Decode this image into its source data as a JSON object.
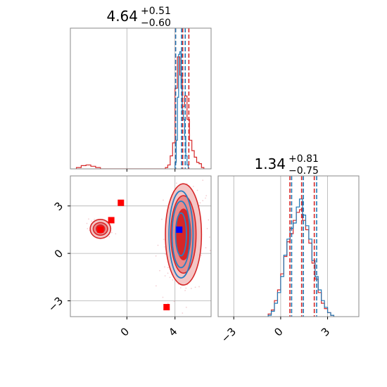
{
  "chart_data": [
    {
      "type": "histogram",
      "panel": "top-left marginal",
      "title": {
        "value": "4.64",
        "plus": "+0.51",
        "minus": "−0.60"
      },
      "xlim": [
        -4.7,
        7.0
      ],
      "ylim": [
        0,
        1.0
      ],
      "grid": true,
      "series": [
        {
          "color": "#d62728",
          "bin_edges": [
            -4.2,
            -3.8,
            -3.4,
            -3.0,
            -2.6,
            -2.2,
            3.2,
            3.4,
            3.6,
            3.8,
            4.0,
            4.2,
            4.4,
            4.6,
            4.8,
            5.0,
            5.2,
            5.4,
            5.6,
            5.8,
            6.0,
            6.2,
            6.4
          ],
          "counts": [
            0.01,
            0.025,
            0.03,
            0.02,
            0.01,
            0,
            0.01,
            0.03,
            0.1,
            0.2,
            0.62,
            0.86,
            0.72,
            0.48,
            0.56,
            0.38,
            0.22,
            0.14,
            0.09,
            0.05,
            0.04,
            0.01
          ],
          "quantiles": [
            4.04,
            4.64,
            5.15
          ]
        },
        {
          "color": "#1f77b4",
          "bin_edges": [
            4.0,
            4.1,
            4.2,
            4.3,
            4.4,
            4.5,
            4.6,
            4.7,
            4.8,
            4.9,
            5.0,
            5.1
          ],
          "counts": [
            0.05,
            0.22,
            0.55,
            0.88,
            0.9,
            0.62,
            0.45,
            0.38,
            0.25,
            0.1,
            0.03
          ],
          "quantiles": [
            4.05,
            4.55,
            4.85
          ]
        }
      ]
    },
    {
      "type": "histogram",
      "panel": "bottom-right marginal",
      "title": {
        "value": "1.34",
        "plus": "+0.81",
        "minus": "−0.75"
      },
      "xlim": [
        -4.0,
        5.0
      ],
      "ylim": [
        0,
        1.0
      ],
      "xticks": [
        -3,
        0,
        3
      ],
      "xtick_labels": [
        "−3",
        "0",
        "3"
      ],
      "grid": true,
      "series": [
        {
          "color": "#d62728",
          "bin_edges": [
            -0.8,
            -0.6,
            -0.4,
            -0.2,
            0.0,
            0.2,
            0.4,
            0.6,
            0.8,
            1.0,
            1.2,
            1.4,
            1.6,
            1.8,
            2.0,
            2.2,
            2.4,
            2.6,
            2.8,
            3.0,
            3.2,
            3.4
          ],
          "counts": [
            0.02,
            0.05,
            0.12,
            0.2,
            0.32,
            0.45,
            0.56,
            0.62,
            0.72,
            0.78,
            0.8,
            0.72,
            0.65,
            0.55,
            0.4,
            0.28,
            0.18,
            0.1,
            0.06,
            0.03,
            0.01
          ],
          "quantiles": [
            0.59,
            1.34,
            2.15
          ]
        },
        {
          "color": "#1f77b4",
          "bin_edges": [
            -0.8,
            -0.6,
            -0.4,
            -0.2,
            0.0,
            0.2,
            0.4,
            0.6,
            0.8,
            1.0,
            1.2,
            1.4,
            1.6,
            1.8,
            2.0,
            2.2,
            2.4,
            2.6,
            2.8,
            3.0,
            3.2,
            3.4
          ],
          "counts": [
            0.01,
            0.04,
            0.1,
            0.18,
            0.3,
            0.46,
            0.58,
            0.66,
            0.7,
            0.82,
            0.88,
            0.76,
            0.68,
            0.58,
            0.42,
            0.3,
            0.2,
            0.12,
            0.07,
            0.03,
            0.01
          ],
          "quantiles": [
            0.7,
            1.45,
            2.3
          ]
        }
      ]
    },
    {
      "type": "contour",
      "panel": "bottom-left joint",
      "xlim": [
        -4.7,
        7.0
      ],
      "ylim": [
        -4.0,
        4.9
      ],
      "xticks": [
        0,
        4
      ],
      "xtick_labels": [
        "0",
        "4"
      ],
      "yticks": [
        3,
        0,
        -3
      ],
      "ytick_labels": [
        "3",
        "0",
        "−3"
      ],
      "grid": true,
      "series": [
        {
          "color": "#d62728",
          "fill_colors": [
            "#d62728",
            "#e88a8b",
            "#f4c6c6"
          ],
          "modes": [
            {
              "center": [
                4.7,
                1.2
              ],
              "sigma_levels": [
                [
                  0.6,
                  1.6
                ],
                [
                  1.05,
                  2.45
                ],
                [
                  1.5,
                  3.2
                ]
              ]
            },
            {
              "center": [
                -2.2,
                1.55
              ],
              "sigma_levels": [
                [
                  0.35,
                  0.25
                ],
                [
                  0.6,
                  0.4
                ],
                [
                  0.85,
                  0.6
                ]
              ]
            }
          ]
        },
        {
          "color": "#2b7fc0",
          "modes": [
            {
              "center": [
                4.5,
                1.2
              ],
              "sigma_levels": [
                [
                  0.45,
                  1.35
                ],
                [
                  0.75,
                  2.1
                ],
                [
                  1.0,
                  2.75
                ]
              ]
            }
          ]
        }
      ],
      "markers": [
        {
          "color": "#ff0000",
          "shape": "square",
          "x": -2.2,
          "y": 1.5
        },
        {
          "color": "#ff0000",
          "shape": "square",
          "x": -1.3,
          "y": 2.1
        },
        {
          "color": "#ff0000",
          "shape": "square",
          "x": -0.5,
          "y": 3.2
        },
        {
          "color": "#ff0000",
          "shape": "square",
          "x": 3.3,
          "y": -3.4
        },
        {
          "color": "#0000ff",
          "shape": "square",
          "x": 4.35,
          "y": 1.5
        }
      ]
    }
  ],
  "colors": {
    "red": "#d62728",
    "blue": "#1f77b4",
    "grid": "#b0b0b0",
    "axes": "#888888"
  }
}
